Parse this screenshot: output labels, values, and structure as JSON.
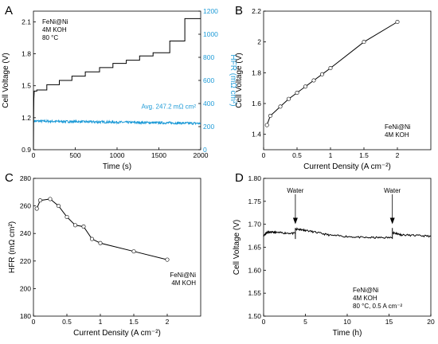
{
  "chart_data": [
    {
      "panel": "A",
      "type": "line",
      "xlabel": "Time (s)",
      "ylabel": "Cell Voltage (V)",
      "y2label": "HFR (mΩ cm²)",
      "xlim": [
        0,
        2000
      ],
      "ylim": [
        0.9,
        2.2
      ],
      "y2lim": [
        0,
        1200
      ],
      "xticks": [
        0,
        500,
        1000,
        1500,
        2000
      ],
      "yticks": [
        0.9,
        1.2,
        1.5,
        1.8,
        2.1
      ],
      "y2ticks": [
        0,
        200,
        400,
        600,
        800,
        1000,
        1200
      ],
      "annotation_lines": [
        "FeNi@Ni",
        "4M KOH",
        "80 °C"
      ],
      "hfr_label": "Avg. 247.2 mΩ cm²",
      "series": [
        {
          "axis": "left",
          "color": "#000000",
          "x": [
            0,
            2,
            5,
            10,
            40,
            40,
            160,
            160,
            310,
            310,
            460,
            460,
            620,
            620,
            790,
            790,
            950,
            950,
            1110,
            1110,
            1270,
            1270,
            1430,
            1430,
            1630,
            1630,
            1810,
            1810,
            2000
          ],
          "y": [
            0.9,
            1.2,
            1.38,
            1.45,
            1.45,
            1.46,
            1.46,
            1.51,
            1.51,
            1.55,
            1.55,
            1.59,
            1.59,
            1.63,
            1.63,
            1.67,
            1.67,
            1.71,
            1.71,
            1.74,
            1.74,
            1.78,
            1.78,
            1.81,
            1.81,
            1.92,
            1.92,
            2.13,
            2.13
          ]
        },
        {
          "axis": "right",
          "color": "#1f9bd7",
          "x_start": 10,
          "x_end": 2000,
          "y_start": 248,
          "y_end": 228,
          "noise": 10
        }
      ]
    },
    {
      "panel": "B",
      "type": "line",
      "xlabel": "Current Density (A cm⁻²)",
      "ylabel": "Cell Voltage (V)",
      "xlim": [
        0,
        2.5
      ],
      "ylim": [
        1.3,
        2.2
      ],
      "xticks": [
        0,
        0.5,
        1,
        1.5,
        2
      ],
      "xtick_labels": [
        "0",
        "0.5",
        "1",
        "1.5",
        "2"
      ],
      "yticks": [
        1.4,
        1.6,
        1.8,
        2.0,
        2.2
      ],
      "ytick_labels": [
        "1.4",
        "1.6",
        "1.8",
        "2",
        "2.2"
      ],
      "annotation_lines": [
        "FeNi@Ni",
        "4M KOH"
      ],
      "x": [
        0.05,
        0.1,
        0.25,
        0.375,
        0.5,
        0.625,
        0.75,
        0.875,
        1.0,
        1.5,
        2.0
      ],
      "y": [
        1.46,
        1.52,
        1.58,
        1.63,
        1.67,
        1.71,
        1.75,
        1.79,
        1.83,
        2.0,
        2.13
      ]
    },
    {
      "panel": "C",
      "type": "line",
      "xlabel": "Current Density (A cm⁻²)",
      "ylabel": "HFR (mΩ cm²)",
      "xlim": [
        0,
        2.5
      ],
      "ylim": [
        180,
        280
      ],
      "xticks": [
        0,
        0.5,
        1,
        1.5,
        2
      ],
      "xtick_labels": [
        "0",
        "0.5",
        "1",
        "1.5",
        "2"
      ],
      "yticks": [
        180,
        200,
        220,
        240,
        260,
        280
      ],
      "annotation_lines": [
        "FeNi@Ni",
        "4M KOH"
      ],
      "x": [
        0.05,
        0.1,
        0.25,
        0.375,
        0.5,
        0.625,
        0.75,
        0.875,
        1.0,
        1.5,
        2.0
      ],
      "y": [
        258,
        264,
        265,
        260,
        252,
        246,
        245,
        236,
        233,
        227,
        221
      ]
    },
    {
      "panel": "D",
      "type": "line",
      "xlabel": "Time (h)",
      "ylabel": "Cell Voltage (V)",
      "xlim": [
        0,
        20
      ],
      "ylim": [
        1.5,
        1.8
      ],
      "xticks": [
        0,
        5,
        10,
        15,
        20
      ],
      "yticks": [
        1.5,
        1.55,
        1.6,
        1.65,
        1.7,
        1.75,
        1.8
      ],
      "annotation_lines": [
        "FeNi@Ni",
        "4M KOH",
        "80 °C, 0.5 A cm⁻²"
      ],
      "events": [
        {
          "label": "Water",
          "x": 3.8
        },
        {
          "label": "Water",
          "x": 15.4
        }
      ],
      "segments": [
        {
          "x": [
            0,
            0.4,
            1.5,
            3.8
          ],
          "y": [
            1.675,
            1.683,
            1.682,
            1.68
          ]
        },
        {
          "x": [
            3.85,
            5,
            8,
            12,
            15.4
          ],
          "y": [
            1.69,
            1.687,
            1.676,
            1.671,
            1.671
          ]
        },
        {
          "x": [
            15.45,
            16.5,
            20
          ],
          "y": [
            1.682,
            1.677,
            1.674
          ]
        }
      ]
    }
  ]
}
